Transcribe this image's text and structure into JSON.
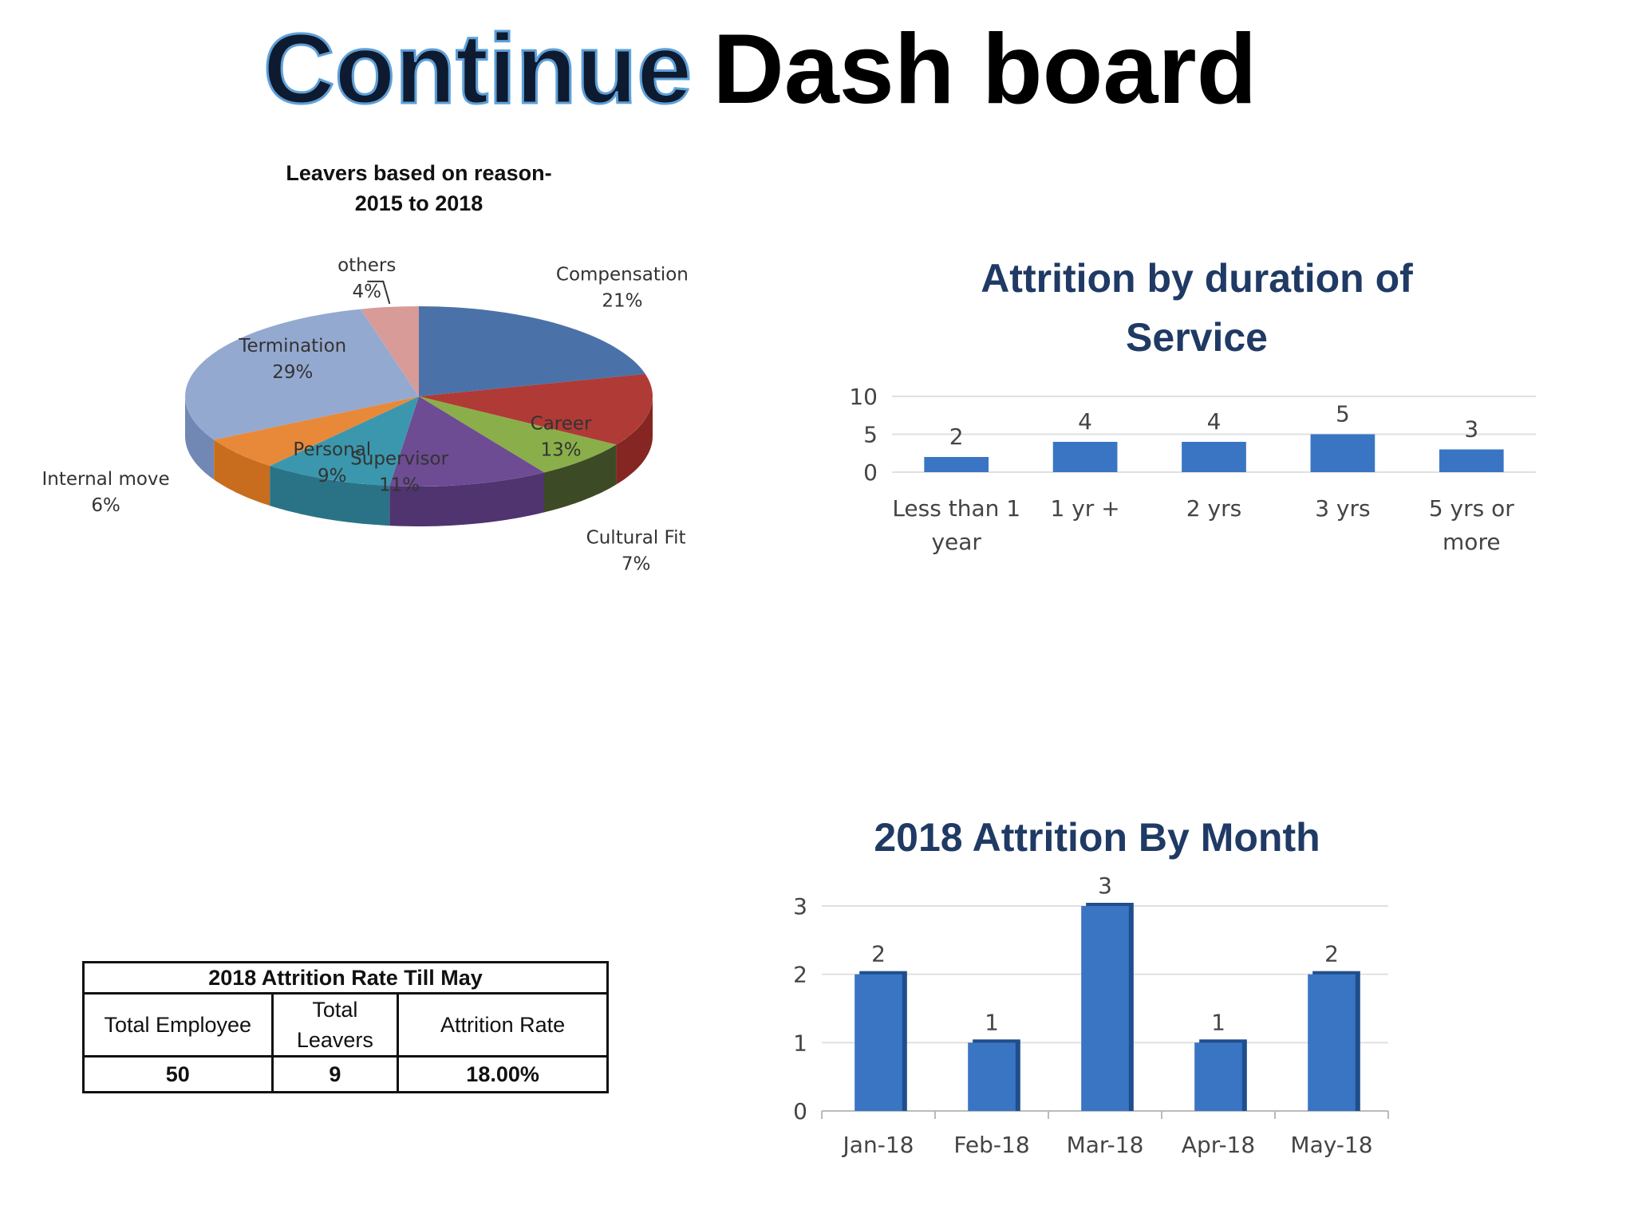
{
  "title": {
    "highlight": "Continue",
    "rest": "Dash board"
  },
  "chart_data": [
    {
      "type": "pie",
      "title_line1": "Leavers based on reason-",
      "title_line2": "2015 to 2018",
      "slices": [
        {
          "name": "Compensation",
          "value": 21,
          "label": "21%",
          "color": "#4a72a8",
          "side": "#2f5185"
        },
        {
          "name": "Career",
          "value": 13,
          "label": "13%",
          "color": "#b03a36",
          "side": "#852622"
        },
        {
          "name": "Cultural Fit",
          "value": 7,
          "label": "7%",
          "color": "#8aae4a",
          "side": "#3d4a26"
        },
        {
          "name": "Supervisor",
          "value": 11,
          "label": "11%",
          "color": "#6d4c93",
          "side": "#4f3470"
        },
        {
          "name": "Personal",
          "value": 9,
          "label": "9%",
          "color": "#3b97ad",
          "side": "#2a7386"
        },
        {
          "name": "Internal move",
          "value": 6,
          "label": "6%",
          "color": "#e8893a",
          "side": "#c86c1e"
        },
        {
          "name": "Termination",
          "value": 29,
          "label": "29%",
          "color": "#94a9d0",
          "side": "#7188b4"
        },
        {
          "name": "others",
          "value": 4,
          "label": "4%",
          "color": "#d99b98",
          "side": "#b97774"
        }
      ]
    },
    {
      "type": "bar",
      "title_line1": "Attrition by duration of",
      "title_line2": "Service",
      "categories": [
        [
          "Less than 1",
          "year"
        ],
        [
          "1 yr +"
        ],
        [
          "2 yrs"
        ],
        [
          "3 yrs"
        ],
        [
          "5 yrs or",
          "more"
        ]
      ],
      "values": [
        2,
        4,
        4,
        5,
        3
      ],
      "yticks": [
        0,
        5,
        10
      ],
      "ylim": [
        0,
        10
      ],
      "color": "#3a75c4"
    },
    {
      "type": "bar",
      "title": "2018 Attrition By Month",
      "categories": [
        "Jan-18",
        "Feb-18",
        "Mar-18",
        "Apr-18",
        "May-18"
      ],
      "values": [
        2,
        1,
        3,
        1,
        2
      ],
      "yticks": [
        0,
        1,
        2,
        3
      ],
      "ylim": [
        0,
        3
      ],
      "color": "#3a75c4"
    }
  ],
  "table": {
    "caption": "2018  Attrition Rate Till May",
    "col1": "Total Employee",
    "col2_line1": "Total",
    "col2_line2": "Leavers",
    "col3": "Attrition Rate",
    "total_employee": "50",
    "total_leavers": "9",
    "attrition_rate": "18.00%"
  }
}
